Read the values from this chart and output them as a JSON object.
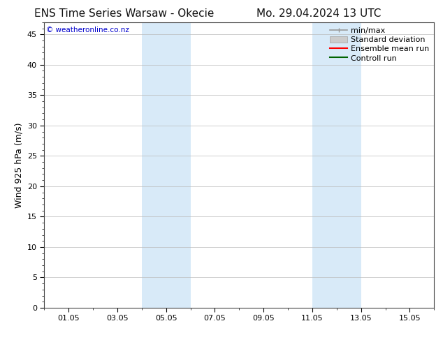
{
  "title_left": "ENS Time Series Warsaw - Okecie",
  "title_right": "Mo. 29.04.2024 13 UTC",
  "ylabel": "Wind 925 hPa (m/s)",
  "watermark": "© weatheronline.co.nz",
  "xtick_labels": [
    "01.05",
    "03.05",
    "05.05",
    "07.05",
    "09.05",
    "11.05",
    "13.05",
    "15.05"
  ],
  "xtick_positions": [
    1.0,
    3.0,
    5.0,
    7.0,
    9.0,
    11.0,
    13.0,
    15.0
  ],
  "ylim": [
    0,
    47
  ],
  "ytick_positions": [
    0,
    5,
    10,
    15,
    20,
    25,
    30,
    35,
    40,
    45
  ],
  "shaded_regions": [
    {
      "xstart": 4.0,
      "xend": 6.0,
      "color": "#d8eaf8"
    },
    {
      "xstart": 11.0,
      "xend": 13.0,
      "color": "#d8eaf8"
    }
  ],
  "background_color": "#ffffff",
  "plot_bg_color": "#ffffff",
  "grid_color": "#bbbbbb",
  "watermark_color": "#0000cc",
  "title_fontsize": 11,
  "axis_label_fontsize": 9,
  "tick_fontsize": 8,
  "legend_fontsize": 8,
  "xstart_val": 0.0,
  "xend_val": 16.0,
  "minmax_color": "#999999",
  "std_face_color": "#cccccc",
  "std_edge_color": "#aaaaaa",
  "ensemble_color": "#ff0000",
  "control_color": "#006400"
}
